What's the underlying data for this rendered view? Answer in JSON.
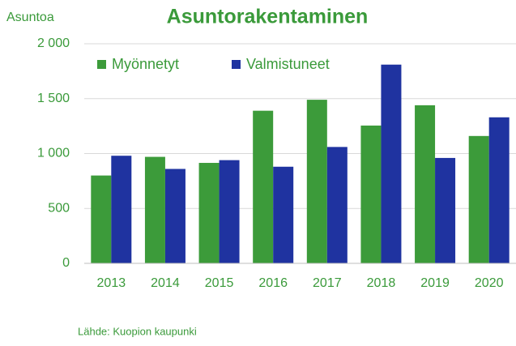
{
  "chart_data": {
    "type": "bar",
    "title": "Asuntorakentaminen",
    "y_label": "Asuntoa",
    "categories": [
      "2013",
      "2014",
      "2015",
      "2016",
      "2017",
      "2018",
      "2019",
      "2020"
    ],
    "series": [
      {
        "name": "Myönnetyt",
        "color": "#3c9b3a",
        "values": [
          800,
          970,
          915,
          1390,
          1490,
          1255,
          1440,
          1160
        ]
      },
      {
        "name": "Valmistuneet",
        "color": "#1f33a0",
        "values": [
          980,
          860,
          940,
          880,
          1060,
          1810,
          960,
          1330
        ]
      }
    ],
    "ylim": [
      0,
      2000
    ],
    "yticks": [
      0,
      500,
      {
        "value": 1000,
        "label": "1 000"
      },
      {
        "value": 1500,
        "label": "1 500"
      },
      {
        "value": 2000,
        "label": "2 000"
      }
    ],
    "grid": true,
    "legend": "top",
    "source": "Lähde: Kuopion kaupunki"
  }
}
